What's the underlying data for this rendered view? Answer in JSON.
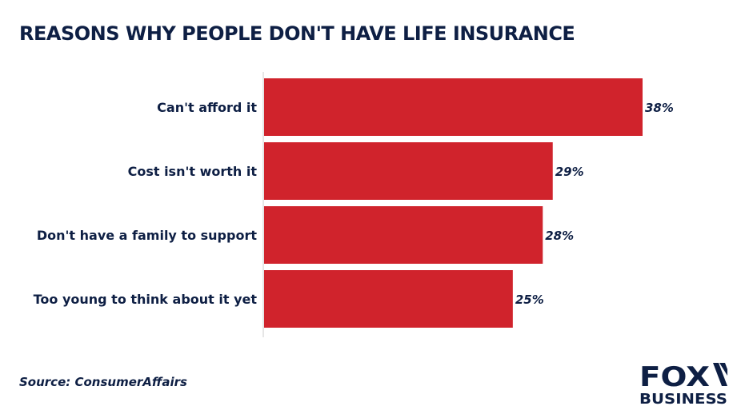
{
  "title": "REASONS WHY PEOPLE DON'T HAVE LIFE INSURANCE",
  "source": "Source: ConsumerAffairs",
  "logo": {
    "top": "FOX",
    "bottom": "BUSINESS",
    "icon": "fox-business-logo"
  },
  "colors": {
    "bar": "#d0232c",
    "title": "#0e1f44",
    "text": "#0e1f44",
    "axis": "#cccccc"
  },
  "chart_data": {
    "type": "bar",
    "orientation": "horizontal",
    "categories": [
      "Can't afford it",
      "Cost isn't worth it",
      "Don't have a family to support",
      "Too young to think about it yet"
    ],
    "values": [
      38,
      29,
      28,
      25
    ],
    "labels": [
      "38%",
      "29%",
      "28%",
      "25%"
    ],
    "unit": "%",
    "xlim": [
      0,
      38
    ],
    "grid": false,
    "legend": "none"
  }
}
